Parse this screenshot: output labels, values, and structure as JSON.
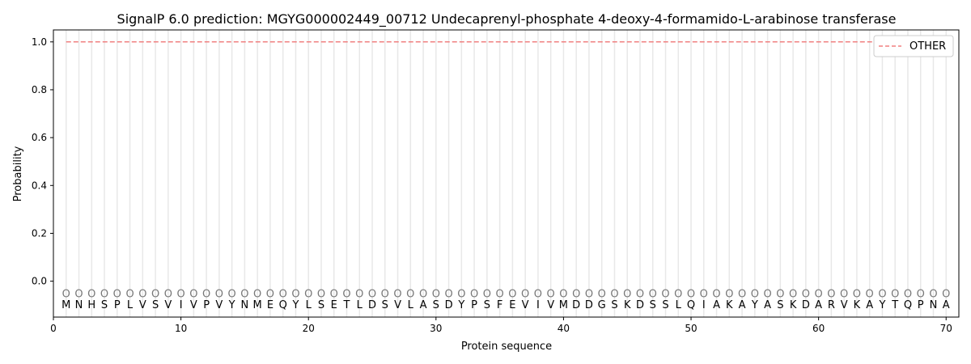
{
  "chart_data": {
    "type": "line",
    "title": "SignalP 6.0 prediction: MGYG000002449_00712 Undecaprenyl-phosphate 4-deoxy-4-formamido-L-arabinose transferase",
    "xlabel": "Protein sequence",
    "ylabel": "Probability",
    "xlim": [
      0,
      71
    ],
    "ylim": [
      -0.15,
      1.05
    ],
    "xticks": [
      0,
      10,
      20,
      30,
      40,
      50,
      60,
      70
    ],
    "yticks": [
      0.0,
      0.2,
      0.4,
      0.6,
      0.8,
      1.0
    ],
    "sequence": "MNHSPLVSVIVPVYNMEQYLSETLDSVLASDYPSFEVIVMDDGSKDSSLQIAKAYASKDARVKAYTQPNA",
    "predicted_label": "O",
    "label_marker_y": -0.05,
    "series": [
      {
        "name": "OTHER",
        "color": "#f08080",
        "style": "dashed",
        "x_range": [
          1,
          70
        ],
        "value": 1.0
      }
    ],
    "legend": {
      "placement": "top-right",
      "entries": [
        "OTHER"
      ]
    },
    "grid": "vertical lines at each residue"
  }
}
